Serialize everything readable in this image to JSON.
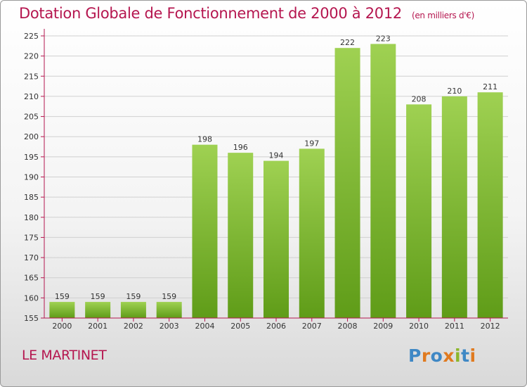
{
  "chart_data": {
    "type": "bar",
    "title": "Dotation Globale de Fonctionnement de 2000 à 2012",
    "subtitle": "(en milliers d'€)",
    "xlabel": "",
    "ylabel": "",
    "categories": [
      "2000",
      "2001",
      "2002",
      "2003",
      "2004",
      "2005",
      "2006",
      "2007",
      "2008",
      "2009",
      "2010",
      "2011",
      "2012"
    ],
    "values": [
      159,
      159,
      159,
      159,
      198,
      196,
      194,
      197,
      222,
      223,
      208,
      210,
      211
    ],
    "data_labels": [
      "159",
      "159",
      "159",
      "159",
      "198",
      "196",
      "194",
      "197",
      "222",
      "223",
      "208",
      "210",
      "211"
    ],
    "ylim": [
      155,
      225
    ],
    "yticks": [
      "155",
      "160",
      "165",
      "170",
      "175",
      "180",
      "185",
      "190",
      "195",
      "200",
      "205",
      "210",
      "215",
      "220",
      "225"
    ],
    "grid": true,
    "legend": "none"
  },
  "footer": {
    "commune": "LE MARTINET"
  },
  "logo": {
    "text": "Proxiti",
    "letters": [
      "P",
      "r",
      "o",
      "x",
      "i",
      "t",
      "i"
    ],
    "colors": [
      "#3f88c5",
      "#e07a1f",
      "#3f88c5",
      "#e07a1f",
      "#8cb62a",
      "#3f88c5",
      "#e07a1f"
    ]
  },
  "colors": {
    "title": "#b5164f",
    "bar_top": "#9fd152",
    "bar_bottom": "#5f9c18",
    "grid": "#d0d0d0",
    "axis": "#b5164f"
  }
}
